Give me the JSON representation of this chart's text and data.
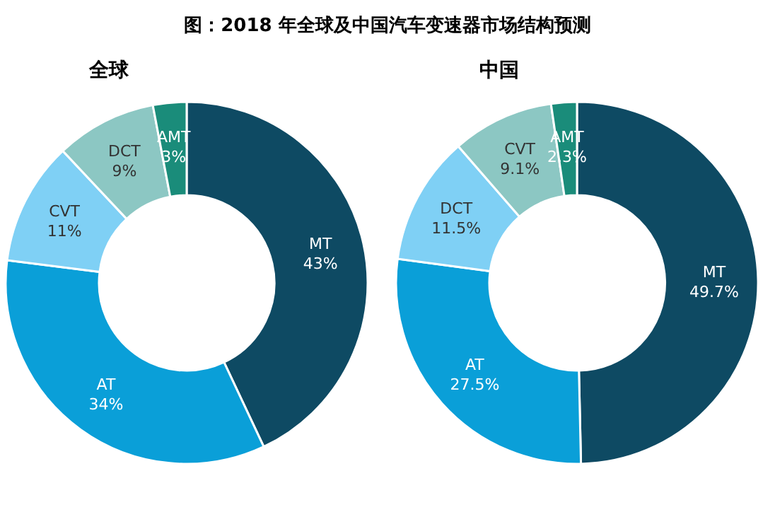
{
  "chart_data": [
    {
      "type": "donut",
      "title": "图：2018 年全球及中国汽车变速器市场结构预测",
      "subtitle": "全球",
      "categories": [
        "MT",
        "AT",
        "CVT",
        "DCT",
        "AMT"
      ],
      "values": [
        43,
        34,
        11,
        9,
        3
      ],
      "value_labels": [
        "43%",
        "34%",
        "11%",
        "9%",
        "3%"
      ],
      "colors": [
        "#0e4a63",
        "#0a9fd8",
        "#7fd0f5",
        "#8cc7c3",
        "#1a8c7a"
      ]
    },
    {
      "type": "donut",
      "subtitle": "中国",
      "categories": [
        "MT",
        "AT",
        "DCT",
        "CVT",
        "AMT"
      ],
      "values": [
        49.7,
        27.5,
        11.5,
        9.1,
        2.3
      ],
      "value_labels": [
        "49.7%",
        "27.5%",
        "11.5%",
        "9.1%",
        "2.3%"
      ],
      "colors": [
        "#0e4a63",
        "#0a9fd8",
        "#7fd0f5",
        "#8cc7c3",
        "#1a8c7a"
      ]
    }
  ]
}
